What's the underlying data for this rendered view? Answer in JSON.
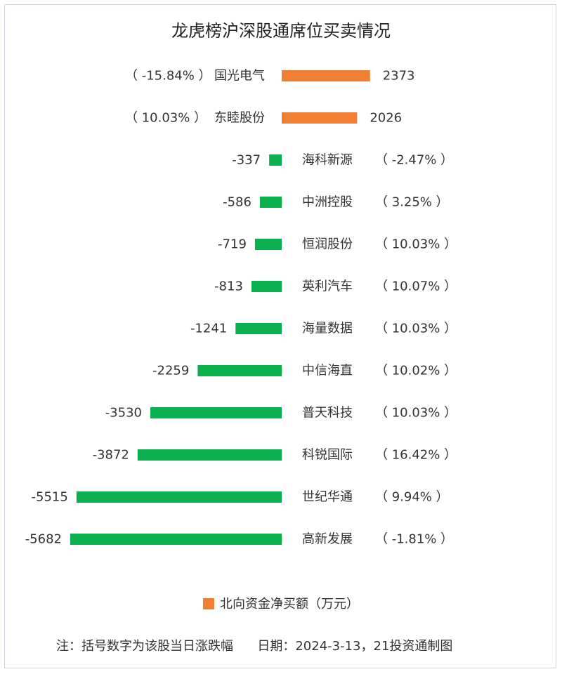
{
  "chart_data": {
    "type": "bar",
    "orientation": "horizontal",
    "title": "龙虎榜沪深股通席位买卖情况",
    "rows": [
      {
        "name": "国光电气",
        "value": 2373,
        "value_label": "2373",
        "pct": "（ -15.84% ）",
        "color": "#f07f32"
      },
      {
        "name": "东睦股份",
        "value": 2026,
        "value_label": "2026",
        "pct": "（ 10.03% ）",
        "color": "#f07f32"
      },
      {
        "name": "海科新源",
        "value": -337,
        "value_label": "-337",
        "pct": "（ -2.47% ）",
        "color": "#0ab04e"
      },
      {
        "name": "中洲控股",
        "value": -586,
        "value_label": "-586",
        "pct": "（ 3.25% ）",
        "color": "#0ab04e"
      },
      {
        "name": "恒润股份",
        "value": -719,
        "value_label": "-719",
        "pct": "（ 10.03% ）",
        "color": "#0ab04e"
      },
      {
        "name": "英利汽车",
        "value": -813,
        "value_label": "-813",
        "pct": "（ 10.07% ）",
        "color": "#0ab04e"
      },
      {
        "name": "海量数据",
        "value": -1241,
        "value_label": "-1241",
        "pct": "（ 10.03% ）",
        "color": "#0ab04e"
      },
      {
        "name": "中信海直",
        "value": -2259,
        "value_label": "-2259",
        "pct": "（ 10.02% ）",
        "color": "#0ab04e"
      },
      {
        "name": "普天科技",
        "value": -3530,
        "value_label": "-3530",
        "pct": "（ 10.03% ）",
        "color": "#0ab04e"
      },
      {
        "name": "科锐国际",
        "value": -3872,
        "value_label": "-3872",
        "pct": "（ 16.42% ）",
        "color": "#0ab04e"
      },
      {
        "name": "世纪华通",
        "value": -5515,
        "value_label": "-5515",
        "pct": "（ 9.94% ）",
        "color": "#0ab04e"
      },
      {
        "name": "高新发展",
        "value": -5682,
        "value_label": "-5682",
        "pct": "（ -1.81% ）",
        "color": "#0ab04e"
      }
    ],
    "legend": [
      {
        "label": "北向资金净买额（万元）",
        "color": "#f07f32"
      }
    ],
    "legend_position": "bottom",
    "grid": false
  },
  "footnote": {
    "left": "注：括号数字为该股当日涨跌幅",
    "right": "日期：2024-3-13，21投资通制图"
  }
}
